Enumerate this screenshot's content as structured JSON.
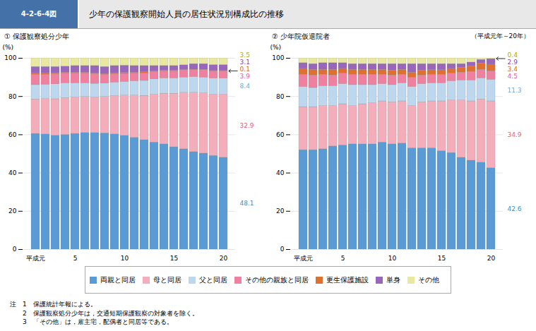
{
  "title": "少年の保護観察開始人員の居住状況別構成比の推移",
  "figure_label": "4-2-6-4図",
  "subtitle": "（平成元年～20年）",
  "legend": "bottom",
  "notes": [
    "注　1　保護統計年報による。",
    "　　2　保護観察処分少年は，交通短期保護観察の対象者を除く。",
    "　　3　「その他」は，雇主宅，配偶者と同居等である。"
  ],
  "chart_data": [
    {
      "type": "bar",
      "stacked": true,
      "title": "① 保護観察処分少年",
      "categories": [
        "平成元",
        null,
        null,
        null,
        "5",
        null,
        null,
        null,
        null,
        "10",
        null,
        null,
        null,
        null,
        "15",
        null,
        null,
        null,
        null,
        "20"
      ],
      "series": [
        {
          "name": "両親と同居",
          "color": "#5B9BD5",
          "values": [
            60.5,
            60.2,
            59.6,
            60.0,
            60.5,
            61.0,
            61.0,
            60.8,
            60.3,
            59.5,
            58.5,
            57.2,
            56.0,
            55.0,
            53.5,
            52.5,
            51.0,
            50.2,
            49.0,
            48.1
          ]
        },
        {
          "name": "母と同居",
          "color": "#F4AEBB",
          "values": [
            18.0,
            18.5,
            19.0,
            19.2,
            19.0,
            18.8,
            18.5,
            19.0,
            20.0,
            21.0,
            22.0,
            23.2,
            25.0,
            26.5,
            28.0,
            29.5,
            31.0,
            31.5,
            32.0,
            32.9
          ]
        },
        {
          "name": "父と同居",
          "color": "#BDD7EE",
          "values": [
            7.5,
            7.5,
            7.8,
            7.8,
            7.5,
            7.2,
            7.2,
            7.0,
            7.0,
            7.2,
            7.5,
            7.8,
            8.0,
            8.0,
            8.0,
            8.0,
            8.2,
            8.3,
            8.4,
            8.4
          ]
        },
        {
          "name": "その他の親族と同居",
          "color": "#F080A0",
          "values": [
            5.5,
            5.3,
            5.2,
            5.0,
            5.0,
            5.0,
            5.0,
            4.5,
            4.3,
            4.2,
            4.0,
            4.0,
            3.8,
            3.8,
            3.8,
            3.8,
            3.8,
            3.9,
            3.9,
            3.9
          ]
        },
        {
          "name": "更生保護施設",
          "color": "#E07030",
          "values": [
            0.5,
            0.5,
            0.5,
            0.5,
            0.5,
            0.5,
            0.5,
            0.5,
            0.5,
            0.5,
            0.5,
            0.5,
            0.3,
            0.2,
            0.2,
            0.1,
            0.1,
            0.1,
            0.1,
            0.1
          ]
        },
        {
          "name": "単身",
          "color": "#9966BB",
          "values": [
            3.5,
            3.5,
            3.4,
            3.2,
            3.5,
            3.5,
            3.8,
            3.7,
            3.9,
            3.8,
            3.5,
            3.3,
            2.9,
            2.5,
            2.5,
            2.5,
            2.9,
            3.0,
            3.1,
            3.1
          ]
        },
        {
          "name": "その他",
          "color": "#E8E8A0",
          "values": [
            4.5,
            4.5,
            4.5,
            4.3,
            4.0,
            4.0,
            4.0,
            4.5,
            4.0,
            3.8,
            4.0,
            4.0,
            4.0,
            4.0,
            4.0,
            3.6,
            3.0,
            3.0,
            3.5,
            3.5
          ]
        }
      ],
      "ylim": [
        0,
        100
      ],
      "yticks": [
        0,
        20,
        40,
        60,
        80,
        100
      ],
      "ylabel": "(%)",
      "grid": true,
      "annotations": [
        {
          "text": "48.1",
          "color": "#4090C8",
          "series": "両親と同居"
        },
        {
          "text": "32.9",
          "color": "#E8607A",
          "series": "母と同居"
        },
        {
          "text": "8.4",
          "color": "#70AADE",
          "series": "父と同居"
        },
        {
          "text": "3.9",
          "color": "#E060A0",
          "series": "その他の親族と同居"
        },
        {
          "text": "0.1",
          "color": "#E06820",
          "series": "更生保護施設",
          "arrow": true
        },
        {
          "text": "3.1",
          "color": "#8844AA",
          "series": "単身"
        },
        {
          "text": "3.5",
          "color": "#AAAA20",
          "series": "その他"
        }
      ]
    },
    {
      "type": "bar",
      "stacked": true,
      "title": "② 少年院仮退院者",
      "categories": [
        "平成元",
        null,
        null,
        null,
        "5",
        null,
        null,
        null,
        null,
        "10",
        null,
        null,
        null,
        null,
        "15",
        null,
        null,
        null,
        null,
        "20"
      ],
      "series": [
        {
          "name": "両親と同居",
          "color": "#5B9BD5",
          "values": [
            52.0,
            52.0,
            52.5,
            54.0,
            54.5,
            55.0,
            55.0,
            55.0,
            56.0,
            55.0,
            55.5,
            53.0,
            53.0,
            53.0,
            51.5,
            50.5,
            48.0,
            46.5,
            45.5,
            42.6
          ]
        },
        {
          "name": "母と同居",
          "color": "#F4AEBB",
          "values": [
            22.5,
            22.5,
            22.5,
            21.0,
            21.5,
            20.0,
            21.0,
            21.5,
            21.5,
            22.0,
            22.0,
            22.0,
            24.0,
            24.5,
            26.0,
            27.5,
            30.0,
            31.0,
            33.0,
            34.9
          ]
        },
        {
          "name": "父と同居",
          "color": "#BDD7EE",
          "values": [
            10.5,
            10.0,
            10.5,
            10.5,
            10.5,
            11.0,
            10.0,
            9.5,
            9.0,
            9.0,
            9.5,
            10.0,
            9.5,
            9.5,
            9.5,
            10.0,
            10.5,
            11.0,
            11.0,
            11.3
          ]
        },
        {
          "name": "その他の親族と同居",
          "color": "#F080A0",
          "values": [
            6.5,
            6.5,
            6.0,
            5.5,
            5.5,
            5.5,
            5.5,
            5.5,
            5.0,
            5.0,
            4.5,
            5.0,
            4.5,
            4.3,
            4.3,
            4.0,
            4.0,
            4.5,
            4.5,
            4.5
          ]
        },
        {
          "name": "更生保護施設",
          "color": "#E07030",
          "values": [
            3.0,
            3.0,
            2.5,
            3.0,
            2.5,
            2.5,
            2.5,
            2.5,
            2.5,
            2.5,
            2.5,
            2.5,
            2.5,
            2.5,
            2.5,
            2.5,
            2.5,
            2.8,
            3.2,
            3.4
          ]
        },
        {
          "name": "単身",
          "color": "#9966BB",
          "values": [
            3.0,
            3.0,
            3.5,
            3.5,
            3.0,
            3.0,
            3.0,
            3.0,
            3.0,
            3.5,
            3.0,
            4.5,
            3.5,
            3.2,
            3.2,
            2.5,
            2.0,
            2.0,
            2.0,
            2.9
          ]
        },
        {
          "name": "その他",
          "color": "#E8E8A0",
          "values": [
            2.5,
            3.0,
            2.5,
            2.5,
            2.5,
            3.0,
            3.0,
            3.0,
            3.0,
            3.0,
            3.0,
            3.0,
            3.0,
            3.0,
            3.0,
            3.0,
            3.0,
            2.2,
            0.8,
            0.4
          ]
        }
      ],
      "ylim": [
        0,
        100
      ],
      "yticks": [
        0,
        20,
        40,
        60,
        80,
        100
      ],
      "ylabel": "(%)",
      "grid": true,
      "annotations": [
        {
          "text": "42.6",
          "color": "#4090C8",
          "series": "両親と同居"
        },
        {
          "text": "34.9",
          "color": "#E8607A",
          "series": "母と同居"
        },
        {
          "text": "11.3",
          "color": "#70AADE",
          "series": "父と同居"
        },
        {
          "text": "4.5",
          "color": "#E060A0",
          "series": "その他の親族と同居"
        },
        {
          "text": "3.4",
          "color": "#E06820",
          "series": "更生保護施設"
        },
        {
          "text": "2.9",
          "color": "#8844AA",
          "series": "単身"
        },
        {
          "text": "0.4",
          "color": "#AAAA20",
          "series": "その他",
          "arrow": true
        }
      ]
    }
  ]
}
